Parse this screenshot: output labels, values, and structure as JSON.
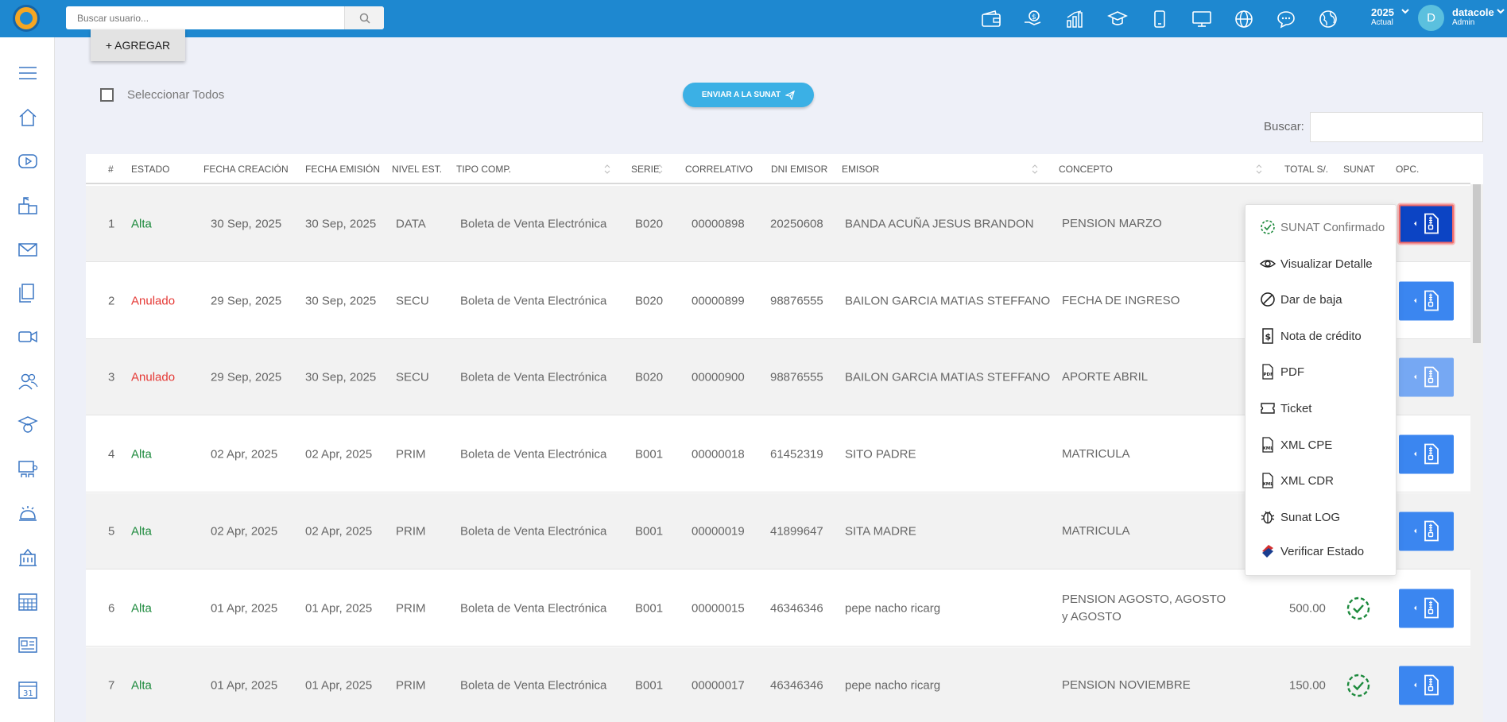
{
  "topbar": {
    "search_placeholder": "Buscar usuario...",
    "icons": [
      "wallet-icon",
      "money-hand-icon",
      "bar-chart-icon",
      "graduation-cap-icon",
      "phone-icon",
      "monitor-icon",
      "globe-icon",
      "chat-icon",
      "world-icon"
    ],
    "year": "2025",
    "year_sub": "Actual",
    "avatar_initial": "D",
    "user_name": "datacole",
    "user_role": "Admin"
  },
  "sidebar": {
    "items": [
      "menu-icon",
      "home-icon",
      "video-play-icon",
      "mailbox-icon",
      "envelope-icon",
      "documents-icon",
      "video-camera-icon",
      "users-icon",
      "graduation-icon",
      "classroom-icon",
      "bell-icon",
      "building-icon",
      "calendar-grid-icon",
      "newspaper-icon",
      "calendar-31-icon"
    ]
  },
  "toolbar": {
    "add_label": "+ AGREGAR",
    "select_all_label": "Seleccionar Todos",
    "send_sunat_label": "ENVIAR A LA SUNAT",
    "filter_label": "Buscar:"
  },
  "table": {
    "headers": [
      "#",
      "ESTADO",
      "FECHA CREACIÓN",
      "FECHA EMISIÓN",
      "NIVEL EST.",
      "TIPO COMP.",
      "SERIE",
      "CORRELATIVO",
      "DNI EMISOR",
      "EMISOR",
      "CONCEPTO",
      "TOTAL S/.",
      "SUNAT",
      "OPC."
    ],
    "rows": [
      {
        "n": "1",
        "estado": "Alta",
        "fc": "30 Sep, 2025",
        "fe": "30 Sep, 2025",
        "nivel": "DATA",
        "tipo": "Boleta de Venta Electrónica",
        "serie": "B020",
        "corr": "00000898",
        "dni": "20250608",
        "emisor": "BANDA ACUÑA JESUS BRANDON",
        "concepto": "PENSION MARZO",
        "total": "",
        "sunat": false
      },
      {
        "n": "2",
        "estado": "Anulado",
        "fc": "29 Sep, 2025",
        "fe": "30 Sep, 2025",
        "nivel": "SECU",
        "tipo": "Boleta de Venta Electrónica",
        "serie": "B020",
        "corr": "00000899",
        "dni": "98876555",
        "emisor": "BAILON GARCIA MATIAS STEFFANO",
        "concepto": "FECHA DE INGRESO",
        "total": "",
        "sunat": false
      },
      {
        "n": "3",
        "estado": "Anulado",
        "fc": "29 Sep, 2025",
        "fe": "30 Sep, 2025",
        "nivel": "SECU",
        "tipo": "Boleta de Venta Electrónica",
        "serie": "B020",
        "corr": "00000900",
        "dni": "98876555",
        "emisor": "BAILON GARCIA MATIAS STEFFANO",
        "concepto": "APORTE ABRIL",
        "total": "",
        "sunat": false
      },
      {
        "n": "4",
        "estado": "Alta",
        "fc": "02 Apr, 2025",
        "fe": "02 Apr, 2025",
        "nivel": "PRIM",
        "tipo": "Boleta de Venta Electrónica",
        "serie": "B001",
        "corr": "00000018",
        "dni": "61452319",
        "emisor": "SITO PADRE",
        "concepto": "MATRICULA",
        "total": "",
        "sunat": false
      },
      {
        "n": "5",
        "estado": "Alta",
        "fc": "02 Apr, 2025",
        "fe": "02 Apr, 2025",
        "nivel": "PRIM",
        "tipo": "Boleta de Venta Electrónica",
        "serie": "B001",
        "corr": "00000019",
        "dni": "41899647",
        "emisor": "SITA MADRE",
        "concepto": "MATRICULA",
        "total": "",
        "sunat": false
      },
      {
        "n": "6",
        "estado": "Alta",
        "fc": "01 Apr, 2025",
        "fe": "01 Apr, 2025",
        "nivel": "PRIM",
        "tipo": "Boleta de Venta Electrónica",
        "serie": "B001",
        "corr": "00000015",
        "dni": "46346346",
        "emisor": "pepe nacho ricarg",
        "concepto": "PENSION AGOSTO, AGOSTO y AGOSTO",
        "total": "500.00",
        "sunat": true
      },
      {
        "n": "7",
        "estado": "Alta",
        "fc": "01 Apr, 2025",
        "fe": "01 Apr, 2025",
        "nivel": "PRIM",
        "tipo": "Boleta de Venta Electrónica",
        "serie": "B001",
        "corr": "00000017",
        "dni": "46346346",
        "emisor": "pepe nacho ricarg",
        "concepto": "PENSION NOVIEMBRE",
        "total": "150.00",
        "sunat": true
      }
    ]
  },
  "dropdown": {
    "items": [
      {
        "label": "SUNAT Confirmado",
        "icon": "check-circle-icon"
      },
      {
        "label": "Visualizar Detalle",
        "icon": "eye-icon"
      },
      {
        "label": "Dar de baja",
        "icon": "ban-icon"
      },
      {
        "label": "Nota de crédito",
        "icon": "dollar-receipt-icon"
      },
      {
        "label": "PDF",
        "icon": "pdf-file-icon"
      },
      {
        "label": "Ticket",
        "icon": "ticket-icon"
      },
      {
        "label": "XML CPE",
        "icon": "xml-file-icon"
      },
      {
        "label": "XML CDR",
        "icon": "xml-file-icon"
      },
      {
        "label": "Sunat LOG",
        "icon": "bug-icon"
      },
      {
        "label": "Verificar Estado",
        "icon": "sunat-logo-icon"
      }
    ]
  },
  "colors": {
    "topbar": "#1e88d0",
    "alta": "#1d8a3d",
    "anulado": "#e53935",
    "opc_button": "#3b86f0",
    "sunat_check": "#1d8a3d"
  }
}
